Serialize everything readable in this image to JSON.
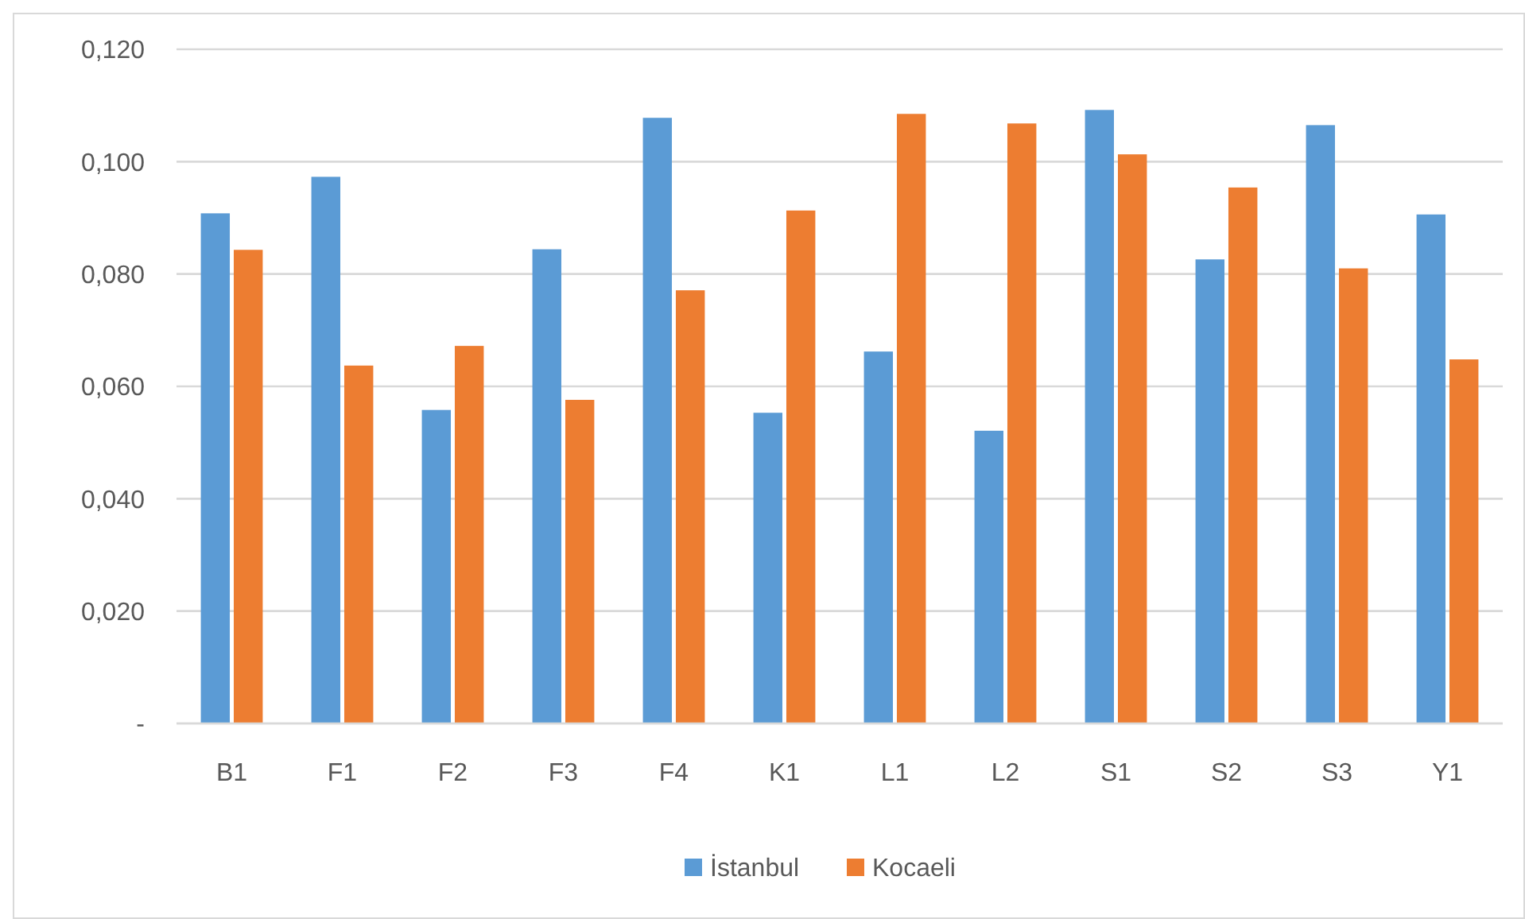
{
  "chart_data": {
    "type": "bar",
    "categories": [
      "B1",
      "F1",
      "F2",
      "F3",
      "F4",
      "K1",
      "L1",
      "L2",
      "S1",
      "S2",
      "S3",
      "Y1"
    ],
    "series": [
      {
        "name": "İstanbul",
        "color": "#5b9bd5",
        "values": [
          0.0908,
          0.0973,
          0.0558,
          0.0844,
          0.1078,
          0.0553,
          0.0662,
          0.0521,
          0.1092,
          0.0826,
          0.1065,
          0.0906
        ]
      },
      {
        "name": "Kocaeli",
        "color": "#ed7d31",
        "values": [
          0.0843,
          0.0637,
          0.0672,
          0.0576,
          0.0771,
          0.0913,
          0.1085,
          0.1068,
          0.1013,
          0.0954,
          0.081,
          0.0648
        ]
      }
    ],
    "ylim": [
      0,
      0.12
    ],
    "yticks": [
      {
        "value": 0,
        "label": "-"
      },
      {
        "value": 0.02,
        "label": "0,020"
      },
      {
        "value": 0.04,
        "label": "0,040"
      },
      {
        "value": 0.06,
        "label": "0,060"
      },
      {
        "value": 0.08,
        "label": "0,080"
      },
      {
        "value": 0.1,
        "label": "0,100"
      },
      {
        "value": 0.12,
        "label": "0,120"
      }
    ],
    "grid": "y",
    "legend": "bottom"
  }
}
